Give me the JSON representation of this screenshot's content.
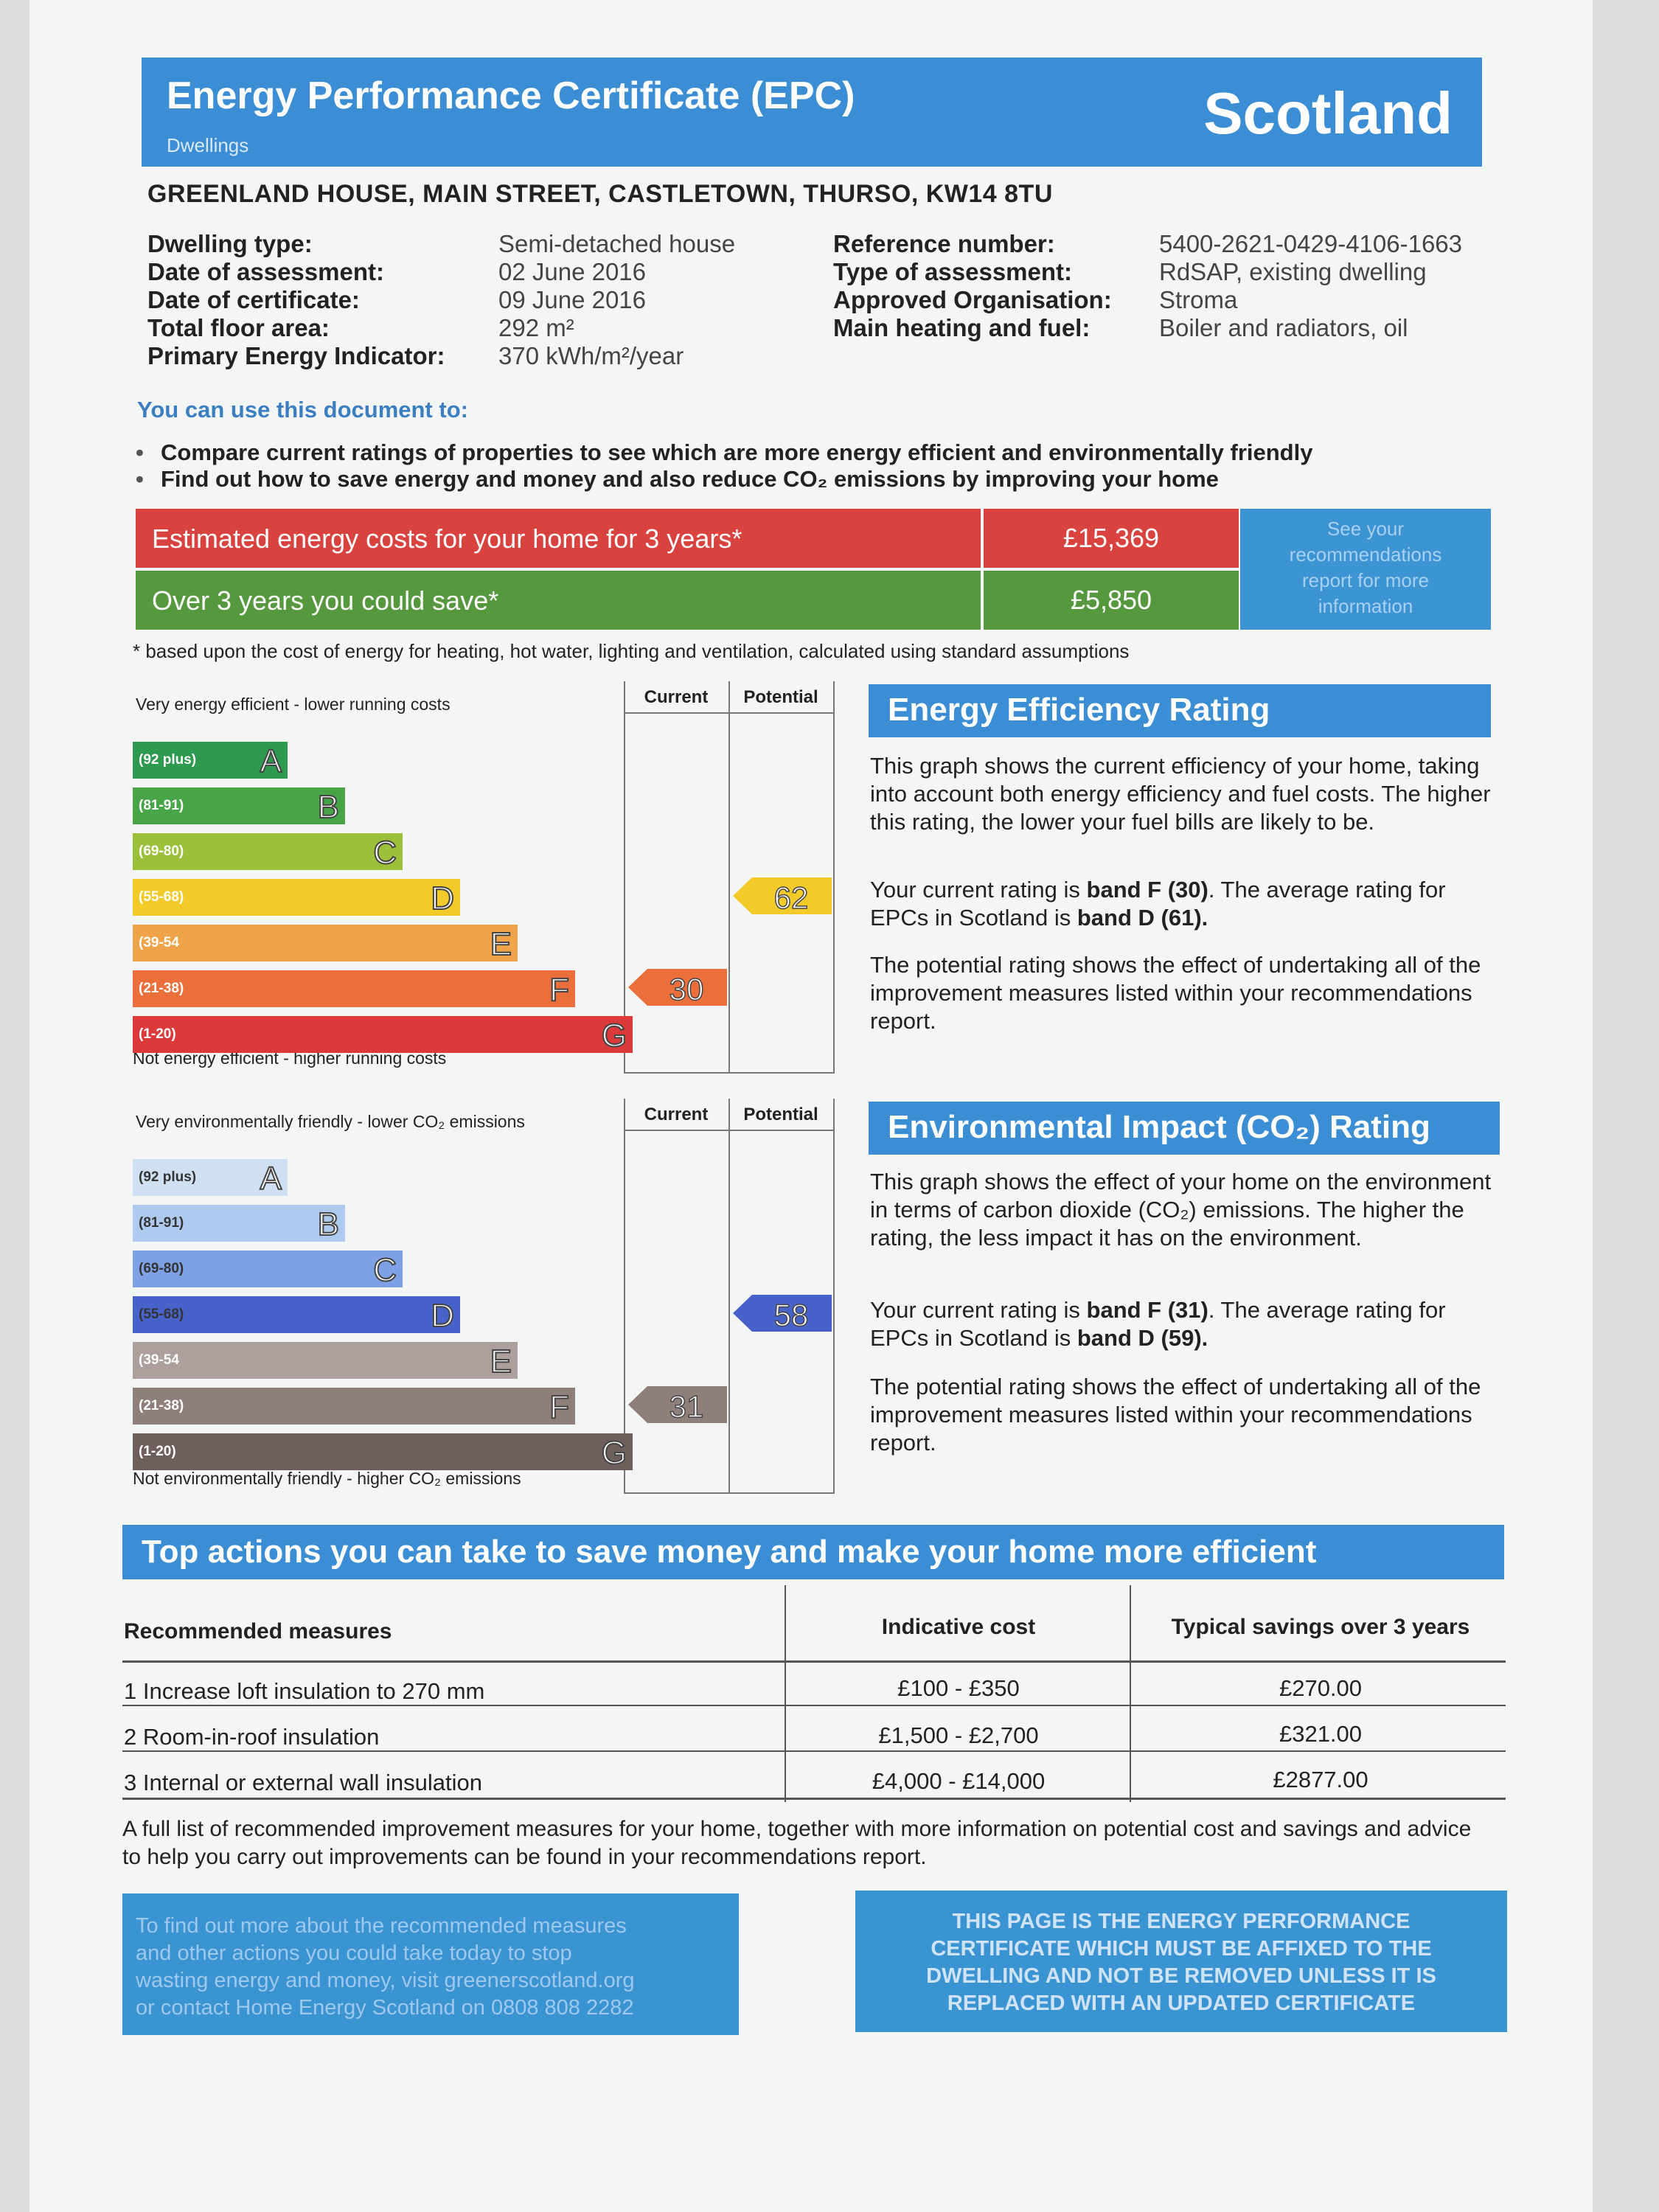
{
  "header": {
    "title": "Energy Performance Certificate (EPC)",
    "subtitle": "Dwellings",
    "region": "Scotland"
  },
  "address": "GREENLAND HOUSE,  MAIN STREET, CASTLETOWN, THURSO, KW14 8TU",
  "details_left": [
    {
      "label": "Dwelling type:",
      "value": "Semi-detached house"
    },
    {
      "label": "Date of assessment:",
      "value": "02 June 2016"
    },
    {
      "label": "Date of certificate:",
      "value": "09 June 2016"
    },
    {
      "label": "Total floor area:",
      "value": "292 m²"
    },
    {
      "label": "Primary Energy Indicator:",
      "value": "370 kWh/m²/year"
    }
  ],
  "details_right": [
    {
      "label": "Reference number:",
      "value": "5400-2621-0429-4106-1663"
    },
    {
      "label": "Type of assessment:",
      "value": "RdSAP, existing dwelling"
    },
    {
      "label": "Approved Organisation:",
      "value": "Stroma"
    },
    {
      "label": "Main heating and fuel:",
      "value": "Boiler and radiators, oil"
    }
  ],
  "intro": "You can use this document to:",
  "bullets": [
    "Compare current ratings of properties to see which are more energy efficient and environmentally friendly",
    "Find out how to save energy and money and also reduce CO₂ emissions by improving your home"
  ],
  "costs": {
    "estimated_label": "Estimated energy costs for your home for 3 years*",
    "estimated_value": "£15,369",
    "save_label": "Over 3 years you could save*",
    "save_value": "£5,850",
    "see_box": [
      "See your",
      "recommendations",
      "report for more",
      "information"
    ],
    "footnote": "* based upon the cost of energy for heating, hot water, lighting and ventilation, calculated using standard assumptions",
    "colors": {
      "estimated": "#d8423f",
      "save": "#55983e"
    }
  },
  "energy_chart": {
    "top_caption": "Very energy efficient - lower running costs",
    "bottom_caption": "Not energy efficient - higher running costs",
    "col_current": "Current",
    "col_potential": "Potential",
    "bands": [
      {
        "range": "(92 plus)",
        "letter": "A",
        "color": "#2e9a4f"
      },
      {
        "range": "(81-91)",
        "letter": "B",
        "color": "#47a547"
      },
      {
        "range": "(69-80)",
        "letter": "C",
        "color": "#9dc03a"
      },
      {
        "range": "(55-68)",
        "letter": "D",
        "color": "#f2cb2a"
      },
      {
        "range": "(39-54",
        "letter": "E",
        "color": "#f0a44a"
      },
      {
        "range": "(21-38)",
        "letter": "F",
        "color": "#ea6f3a"
      },
      {
        "range": "(1-20)",
        "letter": "G",
        "color": "#dc3a3a"
      }
    ],
    "current": {
      "value": "30",
      "band": "F",
      "color": "#ea6f3a"
    },
    "potential": {
      "value": "62",
      "band": "D",
      "color": "#f2cb2a"
    }
  },
  "energy_text": {
    "heading": "Energy Efficiency Rating",
    "p1": "This graph shows the current efficiency of your home, taking into account both energy efficiency and fuel costs. The higher this rating, the lower your fuel bills are likely to be.",
    "p2_a": "Your current rating is ",
    "p2_b": "band F (30)",
    "p2_c": ". The average rating for EPCs in Scotland is ",
    "p2_d": "band D (61).",
    "p3": "The potential rating shows the effect of undertaking all of the improvement measures listed within your recommendations report."
  },
  "env_chart": {
    "top_caption": "Very environmentally friendly - lower CO₂ emissions",
    "bottom_caption": "Not environmentally friendly - higher CO₂ emissions",
    "col_current": "Current",
    "col_potential": "Potential",
    "bands": [
      {
        "range": "(92 plus)",
        "letter": "A",
        "color": "#cfe0f2"
      },
      {
        "range": "(81-91)",
        "letter": "B",
        "color": "#aecbef"
      },
      {
        "range": "(69-80)",
        "letter": "C",
        "color": "#7da1e4"
      },
      {
        "range": "(55-68)",
        "letter": "D",
        "color": "#4762c9"
      },
      {
        "range": "(39-54",
        "letter": "E",
        "color": "#ad9f9b"
      },
      {
        "range": "(21-38)",
        "letter": "F",
        "color": "#8f7f7b"
      },
      {
        "range": "(1-20)",
        "letter": "G",
        "color": "#6f5f5c"
      }
    ],
    "current": {
      "value": "31",
      "band": "F",
      "color": "#8f7f7b"
    },
    "potential": {
      "value": "58",
      "band": "D",
      "color": "#4762c9"
    }
  },
  "env_text": {
    "heading": "Environmental Impact (CO₂) Rating",
    "p1": "This graph shows the effect of your home on the environment in terms of carbon dioxide (CO₂) emissions. The higher the rating, the less impact it has on the environment.",
    "p2_a": "Your current rating is ",
    "p2_b": "band F (31)",
    "p2_c": ". The average rating for EPCs in Scotland is ",
    "p2_d": "band D (59).",
    "p3": "The potential rating shows the effect of undertaking all of the improvement measures listed within your recommendations report."
  },
  "actions": {
    "heading": "Top actions you can take to save money and make your home more efficient",
    "col1": "Recommended measures",
    "col2": "Indicative cost",
    "col3": "Typical savings over 3 years",
    "rows": [
      {
        "measure": "1 Increase loft insulation to 270 mm",
        "cost": "£100 - £350",
        "saving": "£270.00"
      },
      {
        "measure": "2 Room-in-roof insulation",
        "cost": "£1,500 - £2,700",
        "saving": "£321.00"
      },
      {
        "measure": "3 Internal or external wall insulation",
        "cost": "£4,000 - £14,000",
        "saving": "£2877.00"
      }
    ]
  },
  "closing": "A full list of recommended improvement measures for your home, together with more information on potential cost and savings and advice to help you carry out improvements can be found in your recommendations report.",
  "footer_left": [
    "To find out more about the recommended measures",
    "and other actions you could take today to stop",
    "wasting energy and money, visit greenerscotland.org",
    "or contact Home Energy Scotland on 0808 808 2282"
  ],
  "footer_right": [
    "THIS PAGE IS THE ENERGY PERFORMANCE",
    "CERTIFICATE WHICH MUST BE AFFIXED TO THE",
    "DWELLING AND NOT BE REMOVED UNLESS IT IS",
    "REPLACED WITH AN UPDATED CERTIFICATE"
  ]
}
